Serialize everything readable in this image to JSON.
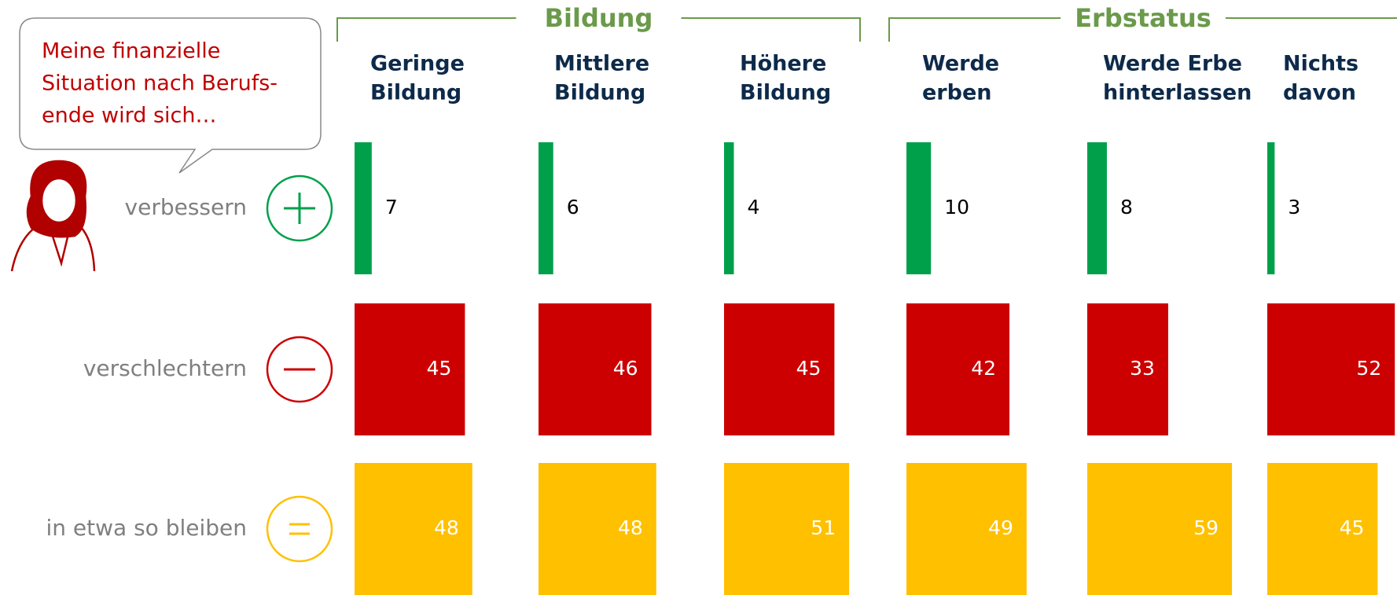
{
  "chart_data": {
    "type": "bar",
    "speech_bubble": [
      "Meine finanzielle",
      "Situation nach Berufs-",
      "ende wird sich…"
    ],
    "groups": [
      {
        "name": "Bildung",
        "categories": [
          [
            "Geringe",
            "Bildung"
          ],
          [
            "Mittlere",
            "Bildung"
          ],
          [
            "Höhere",
            "Bildung"
          ]
        ]
      },
      {
        "name": "Erbstatus",
        "categories": [
          [
            "Werde",
            "erben"
          ],
          [
            "Werde Erbe",
            "hinterlassen"
          ],
          [
            "Nichts",
            "davon"
          ]
        ]
      }
    ],
    "series": [
      {
        "name": "verbessern",
        "color": "#00a04b",
        "values": [
          7,
          6,
          4,
          10,
          8,
          3
        ]
      },
      {
        "name": "verschlechtern",
        "color": "#cc0000",
        "values": [
          45,
          46,
          45,
          42,
          33,
          52
        ]
      },
      {
        "name": "in etwa so bleiben",
        "color": "#ffc000",
        "values": [
          48,
          48,
          51,
          49,
          59,
          45
        ]
      }
    ]
  }
}
